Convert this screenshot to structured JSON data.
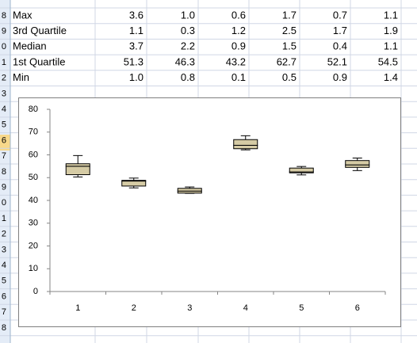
{
  "row_headers": [
    "8",
    "9",
    "0",
    "1",
    "2",
    "3",
    "4",
    "5",
    "6",
    "7",
    "8",
    "9",
    "0",
    "1",
    "2",
    "3",
    "4",
    "5",
    "6",
    "7",
    "8"
  ],
  "chart_data": {
    "type": "box",
    "categories": [
      "1",
      "2",
      "3",
      "4",
      "5",
      "6"
    ],
    "series": [
      {
        "name": "Max",
        "values": [
          3.6,
          1,
          0.6,
          1.7,
          0.7,
          1.1
        ],
        "value_labels": [
          "3.6",
          "1.0",
          "0.6",
          "1.7",
          "0.7",
          "1.1"
        ]
      },
      {
        "name": "3rd Quartile",
        "values": [
          1.1,
          0.3,
          1.2,
          2.5,
          1.7,
          1.9
        ],
        "value_labels": [
          "1.1",
          "0.3",
          "1.2",
          "2.5",
          "1.7",
          "1.9"
        ]
      },
      {
        "name": "Median",
        "values": [
          3.7,
          2.2,
          0.9,
          1.5,
          0.4,
          1.1
        ],
        "value_labels": [
          "3.7",
          "2.2",
          "0.9",
          "1.5",
          "0.4",
          "1.1"
        ]
      },
      {
        "name": "1st Quartile",
        "values": [
          51.3,
          46.3,
          43.2,
          62.7,
          52.1,
          54.5
        ],
        "value_labels": [
          "51.3",
          "46.3",
          "43.2",
          "62.7",
          "52.1",
          "54.5"
        ]
      },
      {
        "name": "Min",
        "values": [
          1,
          0.8,
          0.1,
          0.5,
          0.9,
          1.4
        ],
        "value_labels": [
          "1.0",
          "0.8",
          "0.1",
          "0.5",
          "0.9",
          "1.4"
        ]
      }
    ],
    "box_color": "#d5cba5",
    "ylim": [
      0,
      80
    ],
    "yticks": [
      0,
      10,
      20,
      30,
      40,
      50,
      60,
      70,
      80
    ]
  }
}
